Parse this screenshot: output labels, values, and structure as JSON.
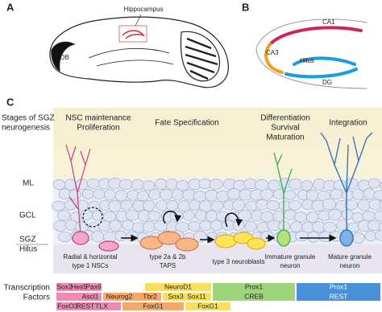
{
  "panel_a": {
    "label": "A",
    "hippocampus": "Hippocampus",
    "ob": "OB"
  },
  "panel_b": {
    "label": "B",
    "regions": [
      "CA1",
      "CA3",
      "Hilus",
      "DG"
    ]
  },
  "panel_c": {
    "label": "C",
    "stages_title": [
      "Stages of SGZ",
      "neurogenesis"
    ],
    "stages": [
      [
        "NSC maintenance",
        "Proliferation"
      ],
      [
        "Fate Specification"
      ],
      [
        "Differentiation",
        "Survival",
        "Maturation"
      ],
      [
        "Integration"
      ]
    ],
    "layers": [
      "ML",
      "GCL",
      "SGZ",
      "Hilus"
    ],
    "cell_types": [
      [
        "Radial & horizontal",
        "type 1 NSCs"
      ],
      [
        "type 2a & 2b",
        "TAPS"
      ],
      [
        "type 3 neuroblasts"
      ],
      [
        "Immature granule",
        "neuron"
      ],
      [
        "Mature granule",
        "neuron"
      ]
    ],
    "tf_title": [
      "Transcription",
      "Factors"
    ],
    "factors": [
      [
        "Sox2",
        "Hes5",
        "Pax6"
      ],
      [
        "Ascl1"
      ],
      [
        "FoxO3",
        "REST",
        "TLX"
      ],
      [
        "Neurog2",
        "Tbr2"
      ],
      [
        "FoxG1"
      ],
      [
        "NeuroD1"
      ],
      [
        "Sox3",
        "Sox11"
      ],
      [
        "FoxG1"
      ],
      [
        "Prox1",
        "CREB"
      ],
      [
        "Prox1",
        "REST"
      ]
    ]
  }
}
